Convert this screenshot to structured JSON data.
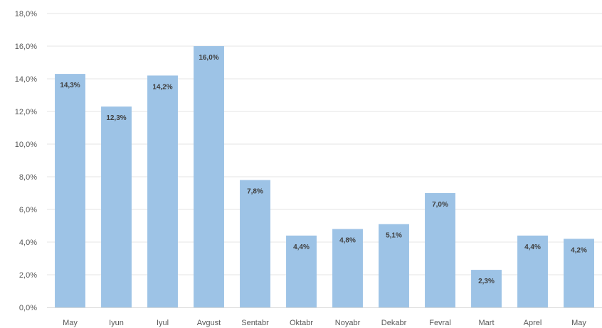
{
  "chart_data": {
    "type": "bar",
    "categories": [
      "May",
      "Iyun",
      "Iyul",
      "Avgust",
      "Sentabr",
      "Oktabr",
      "Noyabr",
      "Dekabr",
      "Fevral",
      "Mart",
      "Aprel",
      "May"
    ],
    "values": [
      14.3,
      12.3,
      14.2,
      16.0,
      7.8,
      4.4,
      4.8,
      5.1,
      7.0,
      2.3,
      4.4,
      4.2
    ],
    "data_labels": [
      "14,3%",
      "12,3%",
      "14,2%",
      "16,0%",
      "7,8%",
      "4,4%",
      "4,8%",
      "5,1%",
      "7,0%",
      "2,3%",
      "4,4%",
      "4,2%"
    ],
    "y_ticks": [
      "0,0%",
      "2,0%",
      "4,0%",
      "6,0%",
      "8,0%",
      "10,0%",
      "12,0%",
      "14,0%",
      "16,0%",
      "18,0%"
    ],
    "ylim": [
      0,
      18
    ],
    "ytick_step": 2,
    "grid": true,
    "bar_color": "#9dc3e6",
    "grid_color": "#e6e6e6",
    "axis_color": "#d9d9d9"
  }
}
